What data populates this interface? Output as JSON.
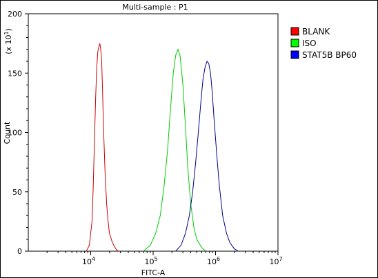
{
  "chart_data": {
    "type": "line",
    "title": "Multi-sample : P1",
    "xlabel": "FITC-A",
    "ylabel": "Count",
    "y_multiplier_label": "(x 10",
    "y_multiplier_exp": "1",
    "x_scale": "log",
    "xlim": [
      1000,
      10000000
    ],
    "ylim": [
      0,
      200
    ],
    "x_ticks": [
      {
        "value": 10000,
        "base": "10",
        "exp": "4"
      },
      {
        "value": 100000,
        "base": "10",
        "exp": "5"
      },
      {
        "value": 1000000,
        "base": "10",
        "exp": "6"
      },
      {
        "value": 10000000,
        "base": "10",
        "exp": "7"
      }
    ],
    "y_ticks": [
      {
        "value": 0,
        "label": "0"
      },
      {
        "value": 50,
        "label": "50"
      },
      {
        "value": 100,
        "label": "100"
      },
      {
        "value": 150,
        "label": "150"
      },
      {
        "value": 200,
        "label": "200"
      }
    ],
    "legend_position": "right",
    "series": [
      {
        "name": "BLANK",
        "color": "#cc0000",
        "legend_color": "#ff0000",
        "x": [
          8500,
          9500,
          10500,
          11000,
          11500,
          12000,
          12500,
          13000,
          13500,
          14000,
          14500,
          15000,
          15500,
          16000,
          17000,
          18000,
          19000,
          20000,
          22000,
          24000,
          26000,
          28000
        ],
        "y": [
          0,
          5,
          25,
          55,
          95,
          130,
          155,
          168,
          172,
          175,
          170,
          160,
          135,
          105,
          65,
          40,
          25,
          15,
          8,
          4,
          1,
          0
        ]
      },
      {
        "name": "ISO",
        "color": "#00cc00",
        "legend_color": "#00ff00",
        "x": [
          70000,
          90000,
          110000,
          130000,
          150000,
          170000,
          190000,
          210000,
          230000,
          250000,
          270000,
          300000,
          330000,
          360000,
          400000,
          450000,
          500000,
          600000,
          700000
        ],
        "y": [
          0,
          5,
          15,
          30,
          55,
          85,
          120,
          150,
          165,
          170,
          165,
          140,
          105,
          70,
          40,
          20,
          10,
          3,
          0
        ]
      },
      {
        "name": "STAT5B BP60",
        "color": "#00008b",
        "legend_color": "#0000ff",
        "x": [
          230000,
          280000,
          330000,
          380000,
          430000,
          480000,
          530000,
          580000,
          630000,
          680000,
          730000,
          780000,
          830000,
          880000,
          950000,
          1050000,
          1150000,
          1300000,
          1500000,
          1700000,
          2000000,
          2300000
        ],
        "y": [
          0,
          5,
          15,
          30,
          50,
          75,
          100,
          125,
          145,
          155,
          160,
          158,
          150,
          135,
          110,
          80,
          55,
          30,
          15,
          7,
          2,
          0
        ]
      }
    ]
  }
}
